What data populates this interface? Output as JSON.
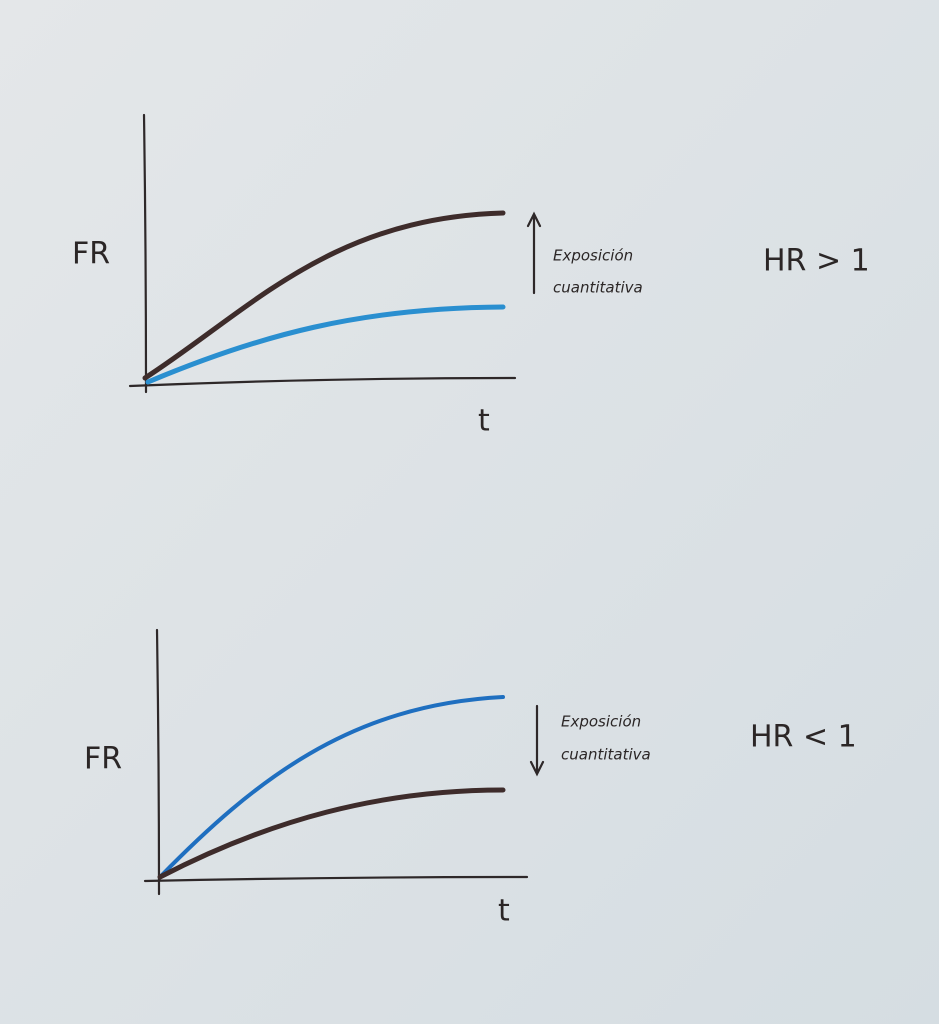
{
  "panels": [
    {
      "y_label": "FR",
      "x_label": "t",
      "annotation": [
        "Exposición",
        "cuantitativa"
      ],
      "condition": "HR > 1"
    },
    {
      "y_label": "FR",
      "x_label": "t",
      "annotation": [
        "Exposición",
        "cuantitativa"
      ],
      "condition": "HR < 1"
    }
  ]
}
